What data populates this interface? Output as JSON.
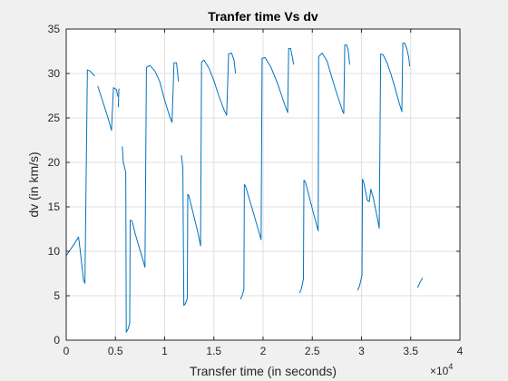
{
  "chart_data": {
    "type": "line",
    "title": "Tranfer time Vs dv",
    "xlabel": "Transfer time (in seconds)",
    "ylabel": "dv (in km/s)",
    "x_exponent_label": "×10",
    "x_exponent_power": "4",
    "xlim": [
      0,
      40000
    ],
    "ylim": [
      0,
      35
    ],
    "xticks": [
      0,
      5000,
      10000,
      15000,
      20000,
      25000,
      30000,
      35000,
      40000
    ],
    "xtick_labels": [
      "0",
      "0.5",
      "1",
      "1.5",
      "2",
      "2.5",
      "3",
      "3.5",
      "4"
    ],
    "yticks": [
      0,
      5,
      10,
      15,
      20,
      25,
      30,
      35
    ],
    "ytick_labels": [
      "0",
      "5",
      "10",
      "15",
      "20",
      "25",
      "30",
      "35"
    ],
    "grid": true,
    "line_color": "#0072bd",
    "series": [
      {
        "values": [
          [
            [
              0,
              9.5
            ],
            [
              800,
              10.8
            ],
            [
              1250,
              11.6
            ],
            [
              1400,
              10.3
            ],
            [
              1750,
              6.8
            ],
            [
              1900,
              6.4
            ],
            [
              2150,
              30.4
            ],
            [
              2400,
              30.3
            ],
            [
              2900,
              29.7
            ]
          ],
          [
            [
              3200,
              28.6
            ],
            [
              3700,
              26.9
            ],
            [
              4300,
              24.8
            ],
            [
              4600,
              23.6
            ],
            [
              4800,
              28.4
            ],
            [
              5100,
              28.2
            ],
            [
              5250,
              27.4
            ]
          ],
          [
            [
              5300,
              26.2
            ],
            [
              5350,
              28.3
            ]
          ],
          [
            [
              5700,
              21.8
            ],
            [
              5800,
              20.0
            ],
            [
              6050,
              18.9
            ],
            [
              6100,
              0.9
            ],
            [
              6300,
              1.3
            ],
            [
              6450,
              1.9
            ],
            [
              6500,
              13.5
            ],
            [
              6700,
              13.4
            ],
            [
              7000,
              12.0
            ],
            [
              7800,
              9.0
            ],
            [
              8000,
              8.2
            ],
            [
              8150,
              30.7
            ],
            [
              8500,
              30.9
            ],
            [
              9000,
              30.3
            ],
            [
              9500,
              29.1
            ],
            [
              10000,
              27.0
            ],
            [
              10500,
              25.2
            ],
            [
              10750,
              24.5
            ],
            [
              10950,
              31.2
            ],
            [
              11200,
              31.2
            ],
            [
              11300,
              30.3
            ],
            [
              11400,
              29.1
            ]
          ],
          [
            [
              11700,
              20.8
            ],
            [
              11850,
              19.4
            ],
            [
              11950,
              3.9
            ],
            [
              12100,
              4.1
            ],
            [
              12300,
              4.7
            ],
            [
              12350,
              16.4
            ],
            [
              12450,
              16.3
            ],
            [
              13400,
              12.0
            ],
            [
              13650,
              10.6
            ],
            [
              13750,
              31.3
            ],
            [
              14000,
              31.5
            ],
            [
              14500,
              30.6
            ],
            [
              15000,
              29.2
            ],
            [
              15500,
              27.5
            ],
            [
              16000,
              26.0
            ],
            [
              16300,
              25.3
            ],
            [
              16500,
              32.2
            ],
            [
              16800,
              32.3
            ],
            [
              17050,
              31.5
            ],
            [
              17200,
              30.0
            ]
          ],
          [
            [
              17700,
              4.6
            ],
            [
              17900,
              5.1
            ],
            [
              18050,
              5.7
            ],
            [
              18100,
              17.5
            ],
            [
              18200,
              17.4
            ],
            [
              19000,
              14.4
            ],
            [
              19800,
              11.3
            ],
            [
              19900,
              31.7
            ],
            [
              20200,
              31.8
            ],
            [
              20800,
              30.7
            ],
            [
              21500,
              28.8
            ],
            [
              22100,
              26.8
            ],
            [
              22500,
              25.6
            ],
            [
              22600,
              32.8
            ],
            [
              22800,
              32.8
            ],
            [
              23000,
              31.7
            ],
            [
              23100,
              31.0
            ]
          ],
          [
            [
              23700,
              5.3
            ],
            [
              23900,
              5.8
            ],
            [
              24100,
              6.9
            ],
            [
              24150,
              18.0
            ],
            [
              24300,
              17.8
            ],
            [
              25000,
              14.8
            ],
            [
              25600,
              12.3
            ],
            [
              25650,
              31.9
            ],
            [
              26000,
              32.3
            ],
            [
              26500,
              31.4
            ],
            [
              27000,
              29.5
            ],
            [
              27500,
              27.7
            ],
            [
              28100,
              25.7
            ],
            [
              28200,
              25.5
            ],
            [
              28300,
              33.2
            ],
            [
              28500,
              33.2
            ],
            [
              28650,
              32.6
            ],
            [
              28800,
              31.0
            ]
          ],
          [
            [
              29600,
              5.6
            ],
            [
              29800,
              6.1
            ],
            [
              30050,
              7.3
            ],
            [
              30100,
              18.1
            ],
            [
              30200,
              17.9
            ],
            [
              30400,
              16.8
            ],
            [
              30600,
              15.7
            ],
            [
              30800,
              15.6
            ],
            [
              30950,
              17.0
            ],
            [
              31200,
              16.0
            ],
            [
              31600,
              13.8
            ],
            [
              31800,
              12.6
            ],
            [
              31950,
              32.2
            ],
            [
              32200,
              32.1
            ],
            [
              32600,
              31.2
            ],
            [
              33000,
              29.9
            ],
            [
              33400,
              28.4
            ],
            [
              33800,
              26.8
            ],
            [
              34100,
              25.7
            ],
            [
              34200,
              33.4
            ],
            [
              34400,
              33.4
            ],
            [
              34600,
              32.8
            ],
            [
              34800,
              31.8
            ],
            [
              34900,
              30.8
            ]
          ],
          [
            [
              35700,
              5.9
            ],
            [
              35900,
              6.4
            ],
            [
              36200,
              7.0
            ]
          ]
        ]
      }
    ]
  }
}
